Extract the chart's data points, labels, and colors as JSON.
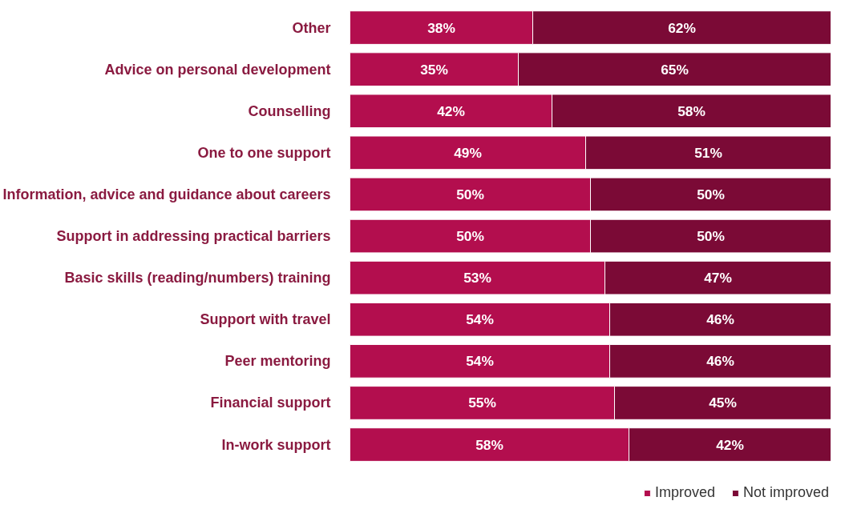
{
  "chart_data": {
    "type": "bar",
    "orientation": "horizontal",
    "stacked": true,
    "categories": [
      "Other",
      "Advice on personal development",
      "Counselling",
      "One to one support",
      "Information, advice and guidance about careers",
      "Support in addressing practical barriers",
      "Basic skills (reading/numbers) training",
      "Support with travel",
      "Peer mentoring",
      "Financial support",
      "In-work support"
    ],
    "series": [
      {
        "name": "Improved",
        "color": "#b30e4e",
        "values": [
          38,
          35,
          42,
          49,
          50,
          50,
          53,
          54,
          54,
          55,
          58
        ],
        "value_labels": [
          "38%",
          "35%",
          "42%",
          "49%",
          "50%",
          "50%",
          "53%",
          "54%",
          "54%",
          "55%",
          "58%"
        ]
      },
      {
        "name": "Not improved",
        "color": "#7b0a36",
        "values": [
          62,
          65,
          58,
          51,
          50,
          50,
          47,
          46,
          46,
          45,
          42
        ],
        "value_labels": [
          "62%",
          "65%",
          "58%",
          "51%",
          "50%",
          "50%",
          "47%",
          "46%",
          "46%",
          "45%",
          "42%"
        ]
      }
    ],
    "legend": "bottom right",
    "grid": false
  }
}
